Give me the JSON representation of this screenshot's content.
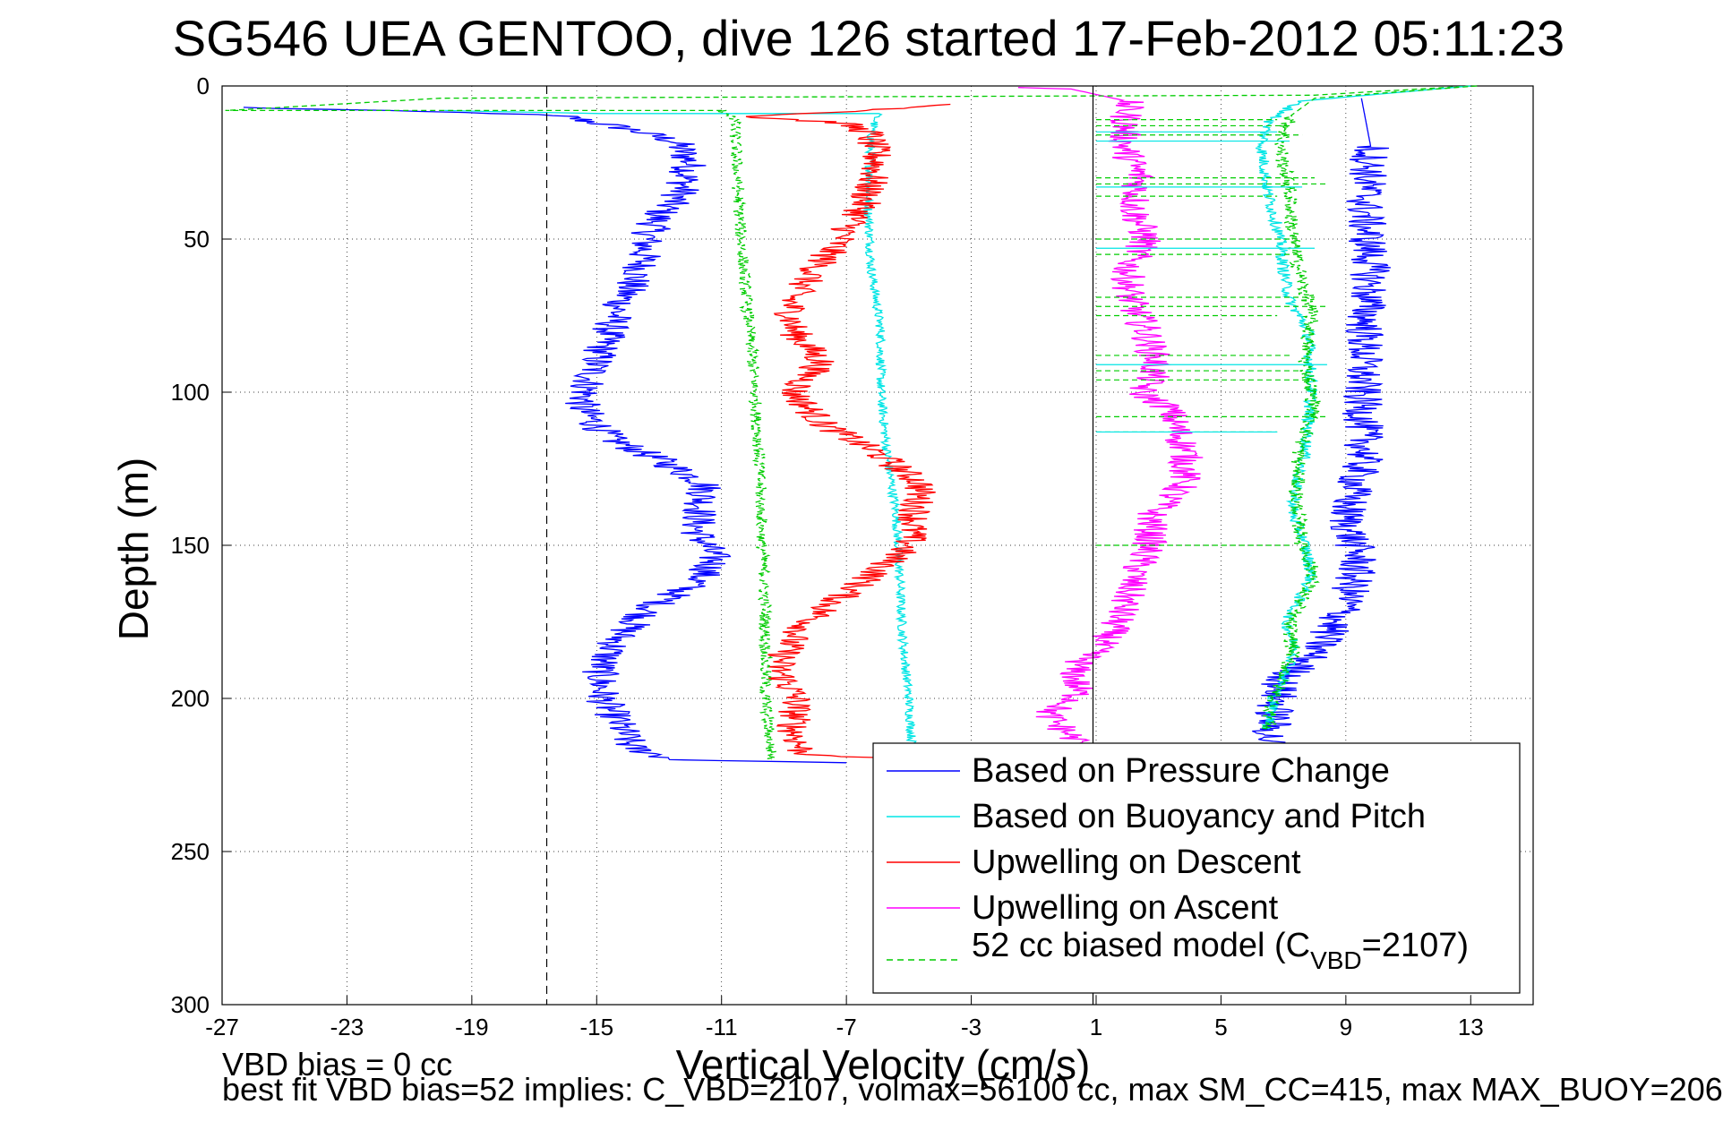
{
  "chart_data": {
    "type": "line",
    "title": "SG546 UEA GENTOO, dive 126 started 17-Feb-2012 05:11:23",
    "xlabel": "Vertical Velocity (cm/s)",
    "ylabel": "Depth (m)",
    "xlim": [
      -27,
      15
    ],
    "ylim": [
      0,
      300
    ],
    "y_reversed": true,
    "grid": true,
    "xticks": [
      "-27",
      "-23",
      "-19",
      "-15",
      "-11",
      "-7",
      "-3",
      "1",
      "5",
      "9",
      "13"
    ],
    "yticks": [
      "0",
      "50",
      "100",
      "150",
      "200",
      "250",
      "300"
    ],
    "reference_lines": {
      "dashed_x": -16.6,
      "solid_x": 0.9
    },
    "legend": {
      "position": "bottom-right",
      "entries": [
        {
          "label": "Based on Pressure Change",
          "color": "#0000ff",
          "style": "solid"
        },
        {
          "label": "Based on Buoyancy and Pitch",
          "color": "#00e5e5",
          "style": "solid"
        },
        {
          "label": "Upwelling on Descent",
          "color": "#ff0000",
          "style": "solid"
        },
        {
          "label": "Upwelling on Ascent",
          "color": "#ff00ff",
          "style": "solid"
        },
        {
          "label_main": "52 cc biased model (C",
          "label_sub": "VBD",
          "label_tail": "=2107)",
          "color": "#00cc00",
          "style": "dashed"
        }
      ]
    },
    "series": [
      {
        "name": "Based on Pressure Change",
        "color": "#0000ff",
        "amp": 0.6,
        "points": [
          [
            -26.5,
            7
          ],
          [
            -18,
            9
          ],
          [
            -16,
            10
          ],
          [
            -14,
            14
          ],
          [
            -12.5,
            18
          ],
          [
            -12,
            25
          ],
          [
            -12.3,
            35
          ],
          [
            -13,
            42
          ],
          [
            -13.4,
            50
          ],
          [
            -13.6,
            60
          ],
          [
            -14.2,
            70
          ],
          [
            -14.6,
            80
          ],
          [
            -15.2,
            95
          ],
          [
            -15.5,
            105
          ],
          [
            -14.6,
            115
          ],
          [
            -13,
            122
          ],
          [
            -11.5,
            130
          ],
          [
            -11.8,
            145
          ],
          [
            -11.2,
            155
          ],
          [
            -11.8,
            162
          ],
          [
            -13.2,
            170
          ],
          [
            -14.3,
            180
          ],
          [
            -14.9,
            190
          ],
          [
            -14.8,
            200
          ],
          [
            -14.2,
            210
          ],
          [
            -13.9,
            216
          ],
          [
            -12.5,
            220
          ],
          [
            -7,
            221
          ]
        ]
      },
      {
        "name": "Based on Buoyancy and Pitch",
        "color": "#00e5e5",
        "amp": 0.15,
        "points": [
          [
            -20,
            8
          ],
          [
            -15,
            9
          ],
          [
            -6,
            9
          ],
          [
            -6.2,
            15
          ],
          [
            -6.3,
            40
          ],
          [
            -6.2,
            60
          ],
          [
            -5.9,
            80
          ],
          [
            -5.9,
            100
          ],
          [
            -5.7,
            120
          ],
          [
            -5.4,
            140
          ],
          [
            -5.3,
            160
          ],
          [
            -5.2,
            180
          ],
          [
            -5.0,
            200
          ],
          [
            -4.9,
            215
          ]
        ]
      },
      {
        "name": "Upwelling on Descent",
        "color": "#ff0000",
        "amp": 0.55,
        "points": [
          [
            -3.7,
            6
          ],
          [
            -6,
            8
          ],
          [
            -8,
            9
          ],
          [
            -10.2,
            10
          ],
          [
            -7.2,
            12
          ],
          [
            -6.3,
            15
          ],
          [
            -6.0,
            25
          ],
          [
            -6.5,
            40
          ],
          [
            -7.2,
            50
          ],
          [
            -8.0,
            60
          ],
          [
            -8.8,
            70
          ],
          [
            -8.7,
            80
          ],
          [
            -7.8,
            90
          ],
          [
            -8.7,
            100
          ],
          [
            -7.8,
            110
          ],
          [
            -6.0,
            120
          ],
          [
            -4.6,
            130
          ],
          [
            -4.8,
            140
          ],
          [
            -5.0,
            150
          ],
          [
            -6.2,
            160
          ],
          [
            -7.6,
            170
          ],
          [
            -8.7,
            180
          ],
          [
            -9.2,
            190
          ],
          [
            -8.6,
            200
          ],
          [
            -8.7,
            210
          ],
          [
            -8.4,
            218
          ],
          [
            -5.2,
            220
          ]
        ]
      },
      {
        "name": "Upwelling on Ascent",
        "color": "#ff00ff",
        "amp": 0.55,
        "points": [
          [
            -1.5,
            0.5
          ],
          [
            0.2,
            1
          ],
          [
            2.0,
            5
          ],
          [
            1.9,
            20
          ],
          [
            2.4,
            30
          ],
          [
            2.2,
            40
          ],
          [
            2.6,
            50
          ],
          [
            2.0,
            60
          ],
          [
            2.1,
            70
          ],
          [
            2.6,
            80
          ],
          [
            2.9,
            90
          ],
          [
            2.8,
            95
          ],
          [
            2.4,
            100
          ],
          [
            3.3,
            105
          ],
          [
            3.9,
            120
          ],
          [
            3.8,
            130
          ],
          [
            2.8,
            140
          ],
          [
            2.7,
            150
          ],
          [
            2.2,
            160
          ],
          [
            1.9,
            170
          ],
          [
            1.4,
            180
          ],
          [
            0.3,
            190
          ],
          [
            0.4,
            200
          ],
          [
            -0.6,
            205
          ],
          [
            0.5,
            215
          ]
        ]
      },
      {
        "name": "52 cc biased model",
        "color": "#00cc00",
        "amp": 0.2,
        "dashed": true,
        "points": [
          [
            13,
            0
          ],
          [
            8,
            3
          ],
          [
            -20,
            4
          ],
          [
            -26.8,
            8
          ],
          [
            -11,
            8
          ],
          [
            -10.6,
            10
          ],
          [
            -10.5,
            30
          ],
          [
            -10.3,
            60
          ],
          [
            -10.0,
            90
          ],
          [
            -9.8,
            120
          ],
          [
            -9.7,
            150
          ],
          [
            -9.6,
            170
          ],
          [
            -9.6,
            200
          ],
          [
            -9.4,
            220
          ]
        ]
      },
      {
        "name": "Based on Pressure Change",
        "color": "#0000ff",
        "amp": 0.65,
        "points": [
          [
            9.5,
            4
          ],
          [
            9.8,
            20
          ],
          [
            9.6,
            40
          ],
          [
            9.8,
            60
          ],
          [
            9.6,
            80
          ],
          [
            9.5,
            100
          ],
          [
            9.6,
            120
          ],
          [
            9.0,
            140
          ],
          [
            9.4,
            155
          ],
          [
            9.0,
            170
          ],
          [
            8.0,
            185
          ],
          [
            6.9,
            195
          ],
          [
            6.7,
            205
          ],
          [
            6.5,
            215
          ]
        ]
      },
      {
        "name": "Based on Buoyancy and Pitch",
        "color": "#00e5e5",
        "amp": 0.2,
        "points": [
          [
            13,
            0
          ],
          [
            7.5,
            5
          ],
          [
            6.5,
            12
          ],
          [
            6.3,
            20
          ],
          [
            6.5,
            35
          ],
          [
            6.9,
            50
          ],
          [
            7.0,
            60
          ],
          [
            7.2,
            70
          ],
          [
            7.8,
            80
          ],
          [
            7.9,
            100
          ],
          [
            7.7,
            120
          ],
          [
            7.4,
            130
          ],
          [
            7.3,
            140
          ],
          [
            7.7,
            150
          ],
          [
            7.9,
            160
          ],
          [
            7.1,
            175
          ],
          [
            7.4,
            185
          ],
          [
            6.7,
            200
          ],
          [
            6.5,
            210
          ]
        ]
      },
      {
        "name": "52 cc biased model",
        "color": "#00cc00",
        "amp": 0.25,
        "dashed": true,
        "points": [
          [
            13.2,
            0
          ],
          [
            8,
            4
          ],
          [
            7.2,
            10
          ],
          [
            6.9,
            20
          ],
          [
            7.2,
            35
          ],
          [
            7.3,
            50
          ],
          [
            7.5,
            60
          ],
          [
            7.9,
            75
          ],
          [
            7.7,
            90
          ],
          [
            8.0,
            105
          ],
          [
            7.5,
            120
          ],
          [
            7.4,
            135
          ],
          [
            7.6,
            150
          ],
          [
            8.0,
            160
          ],
          [
            7.2,
            175
          ],
          [
            7.3,
            185
          ],
          [
            6.7,
            200
          ],
          [
            6.5,
            210
          ]
        ]
      }
    ],
    "stair_lines": [
      {
        "color": "#00cc00",
        "dashed": true,
        "depths": [
          11,
          13,
          16,
          30,
          32,
          36,
          50,
          55,
          69,
          72,
          75,
          88,
          93,
          96,
          108,
          113,
          150
        ],
        "x_from": 1.0
      },
      {
        "color": "#00e5e5",
        "dashed": false,
        "depths": [
          15,
          18,
          33,
          53,
          91,
          113
        ],
        "x_from": 1.0
      }
    ]
  },
  "footer": {
    "line1": "VBD bias = 0 cc",
    "line2": "best fit VBD bias=52 implies: C_VBD=2107, volmax=56100 cc, max SM_CC=415, max MAX_BUOY=206"
  }
}
